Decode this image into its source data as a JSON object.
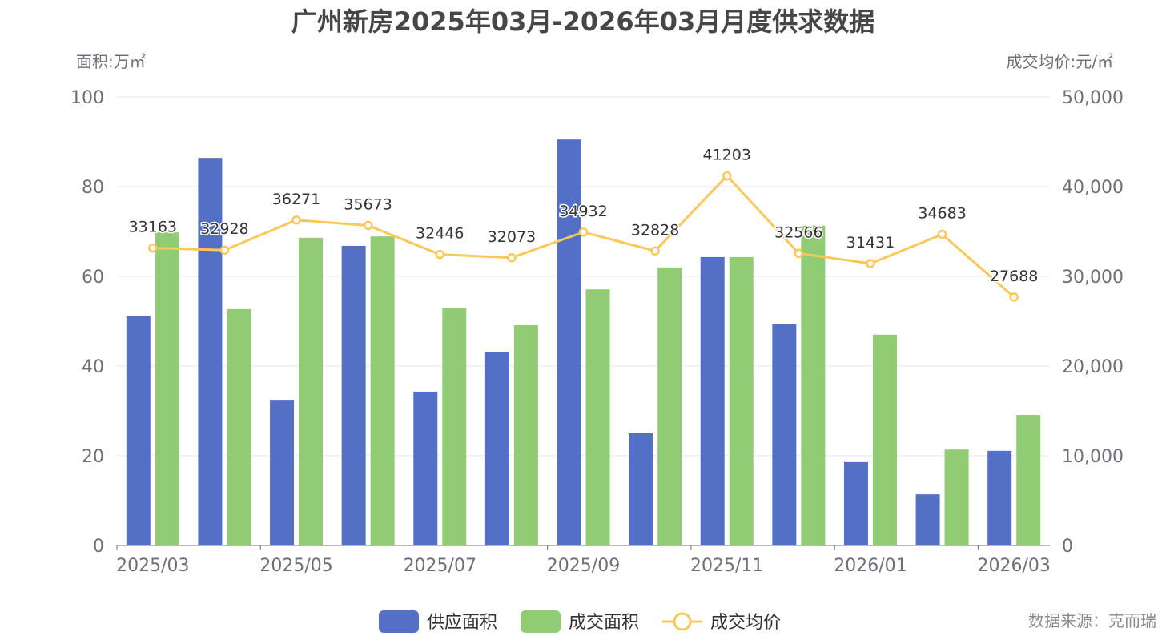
{
  "chart_data": {
    "type": "bar",
    "title": "广州新房2025年03月-2026年03月月度供求数据",
    "ylabel_left": "面积:万㎡",
    "ylabel_right": "成交均价:元/㎡",
    "ylim_left": [
      0,
      100
    ],
    "ylim_right": [
      0,
      50000
    ],
    "yticks_left": [
      "0",
      "20",
      "40",
      "60",
      "80",
      "100"
    ],
    "yticks_right": [
      "0",
      "10,000",
      "20,000",
      "30,000",
      "40,000",
      "50,000"
    ],
    "grid": true,
    "legend_position": "bottom",
    "categories": [
      "2025/03",
      "2025/04",
      "2025/05",
      "2025/06",
      "2025/07",
      "2025/08",
      "2025/09",
      "2025/10",
      "2025/11",
      "2025/12",
      "2026/01",
      "2026/02",
      "2026/03"
    ],
    "xtick_labels": [
      "2025/03",
      "2025/05",
      "2025/07",
      "2025/09",
      "2025/11",
      "2026/01",
      "2026/03"
    ],
    "series": [
      {
        "name": "供应面积",
        "type": "bar",
        "axis": "left",
        "color": "#5470c6",
        "values": [
          51.1,
          86.4,
          32.3,
          66.8,
          34.3,
          43.2,
          90.5,
          25.0,
          64.3,
          49.3,
          18.6,
          11.4,
          21.1
        ]
      },
      {
        "name": "成交面积",
        "type": "bar",
        "axis": "left",
        "color": "#91cc75",
        "values": [
          69.8,
          52.7,
          68.6,
          68.9,
          53.0,
          49.1,
          57.1,
          62.0,
          64.3,
          71.3,
          47.0,
          21.4,
          29.1
        ]
      },
      {
        "name": "成交均价",
        "type": "line",
        "axis": "right",
        "color": "#fac858",
        "values": [
          33163,
          32928,
          36271,
          35673,
          32446,
          32073,
          34932,
          32828,
          41203,
          32566,
          31431,
          34683,
          27688
        ]
      }
    ],
    "source": "数据来源：克而瑞"
  }
}
